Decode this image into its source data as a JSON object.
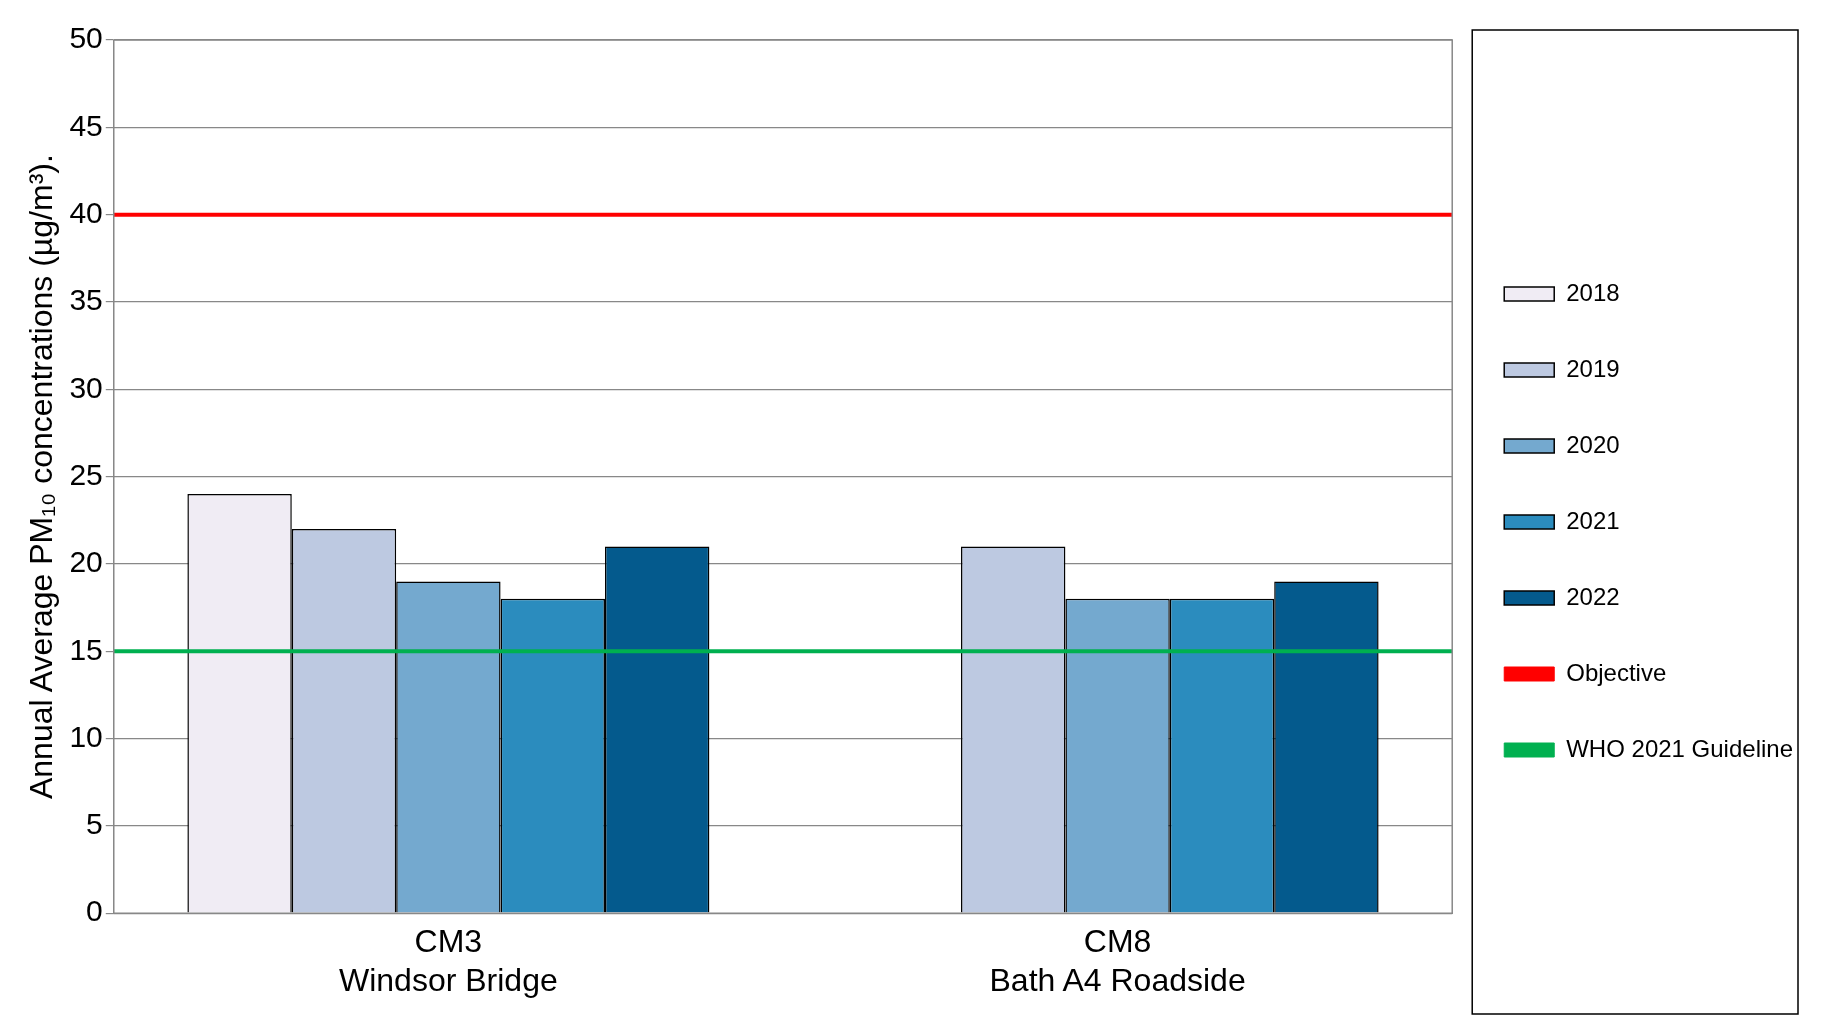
{
  "chart_data": {
    "type": "bar",
    "ylabel": "Annual Average PM₁₀ concentrations (µg/m³).",
    "categories": [
      "CM3\nWindsor Bridge",
      "CM8\nBath A4 Roadside"
    ],
    "series": [
      {
        "name": "2018",
        "color": "#f0ecf4",
        "values": [
          24,
          null
        ]
      },
      {
        "name": "2019",
        "color": "#bdc9e1",
        "values": [
          22,
          21
        ]
      },
      {
        "name": "2020",
        "color": "#74a9cf",
        "values": [
          19,
          18
        ]
      },
      {
        "name": "2021",
        "color": "#2b8cbe",
        "values": [
          18,
          18
        ]
      },
      {
        "name": "2022",
        "color": "#045a8d",
        "values": [
          21,
          19
        ]
      }
    ],
    "ref_lines": [
      {
        "axis": "y",
        "value": 40,
        "label": "Objective",
        "color": "#ff0000"
      },
      {
        "axis": "y",
        "value": 15,
        "label": "WHO 2021 Guideline",
        "color": "#00b050"
      }
    ],
    "ylim": [
      0,
      50
    ],
    "yticks": [
      0,
      5,
      10,
      15,
      20,
      25,
      30,
      35,
      40,
      45,
      50
    ],
    "grid": "y",
    "legend": "right"
  }
}
